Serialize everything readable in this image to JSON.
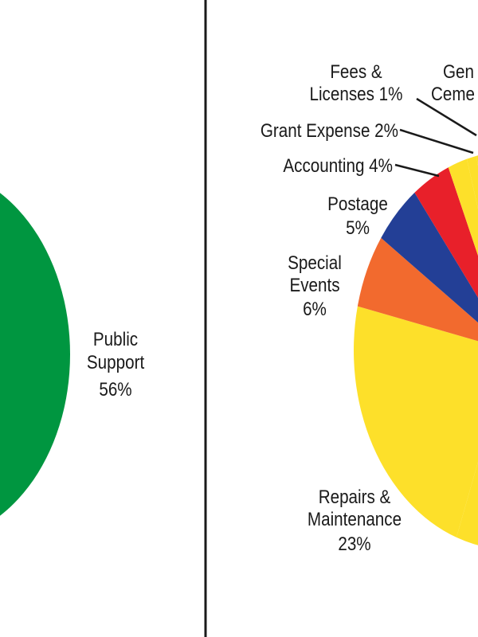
{
  "chart_data": [
    {
      "type": "pie",
      "slices": [
        {
          "label": "Public Support",
          "value": 56,
          "display": "56%",
          "color": "#009640"
        }
      ]
    },
    {
      "type": "pie",
      "slices": [
        {
          "label": "Repairs & Maintenance",
          "value": 23,
          "display": "23%",
          "color": "#fde02a"
        },
        {
          "label": "Special Events",
          "value": 6,
          "display": "6%",
          "color": "#f26a2e"
        },
        {
          "label": "Postage",
          "value": 5,
          "display": "5%",
          "color": "#233f96"
        },
        {
          "label": "Accounting",
          "value": 4,
          "display": "4%",
          "color": "#e8202a"
        },
        {
          "label": "Grant Expense",
          "value": 2,
          "display": "2%",
          "color": "#fde02a"
        },
        {
          "label": "Fees & Licenses",
          "value": 1,
          "display": "1%",
          "color": "#fde02a"
        }
      ],
      "partial_label": "Gen",
      "partial_label_line2": "Ceme"
    }
  ],
  "colors": {
    "divider": "#1a1a1a",
    "text": "#1a1a1a",
    "leader": "#1a1a1a"
  }
}
